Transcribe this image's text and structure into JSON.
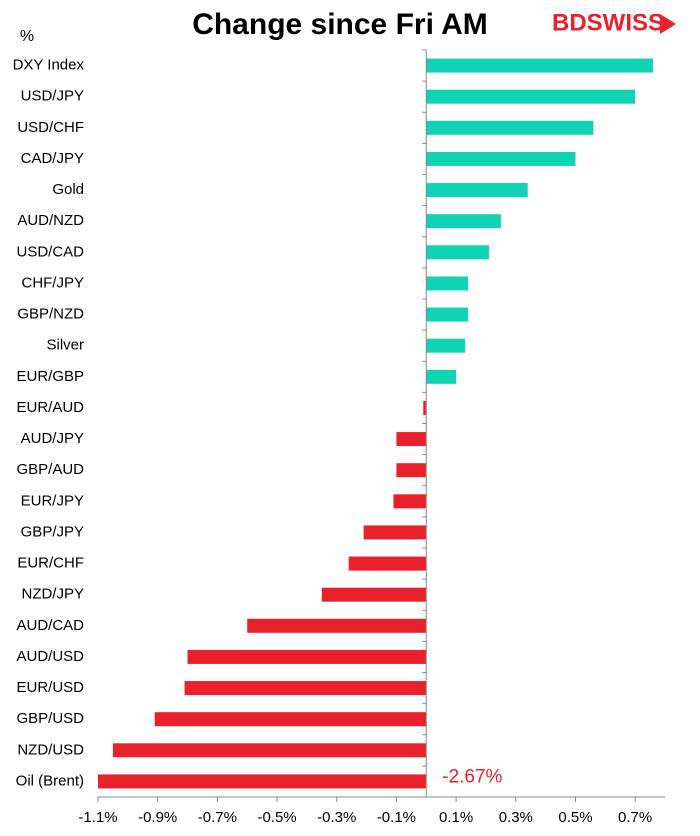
{
  "chart_data": {
    "type": "hbar",
    "title": "Change since Fri AM",
    "unit_label": "%",
    "logo": "BDSWISS",
    "categories": [
      "DXY Index",
      "USD/JPY",
      "USD/CHF",
      "CAD/JPY",
      "Gold",
      "AUD/NZD",
      "USD/CAD",
      "CHF/JPY",
      "GBP/NZD",
      "Silver",
      "EUR/GBP",
      "EUR/AUD",
      "AUD/JPY",
      "GBP/AUD",
      "EUR/JPY",
      "GBP/JPY",
      "EUR/CHF",
      "NZD/JPY",
      "AUD/CAD",
      "AUD/USD",
      "EUR/USD",
      "GBP/USD",
      "NZD/USD",
      "Oil (Brent)"
    ],
    "values": [
      0.76,
      0.7,
      0.56,
      0.5,
      0.34,
      0.25,
      0.21,
      0.14,
      0.14,
      0.13,
      0.1,
      -0.01,
      -0.1,
      -0.1,
      -0.11,
      -0.21,
      -0.26,
      -0.35,
      -0.6,
      -0.8,
      -0.81,
      -0.91,
      -1.05,
      -2.67
    ],
    "value_labels": [
      null,
      null,
      null,
      null,
      null,
      null,
      null,
      null,
      null,
      null,
      null,
      null,
      null,
      null,
      null,
      null,
      null,
      null,
      null,
      null,
      null,
      null,
      null,
      "-2.67%"
    ],
    "positive_color": "#0fd4b4",
    "negative_color": "#e8212b",
    "xlim": [
      -1.1,
      0.8
    ],
    "xticks": [
      {
        "value": -1.1,
        "label": "-1.1%"
      },
      {
        "value": -0.9,
        "label": "-0.9%"
      },
      {
        "value": -0.7,
        "label": "-0.7%"
      },
      {
        "value": -0.5,
        "label": "-0.5%"
      },
      {
        "value": -0.3,
        "label": "-0.3%"
      },
      {
        "value": -0.1,
        "label": "-0.1%"
      },
      {
        "value": 0.1,
        "label": "0.1%"
      },
      {
        "value": 0.3,
        "label": "0.3%"
      },
      {
        "value": 0.5,
        "label": "0.5%"
      },
      {
        "value": 0.7,
        "label": "0.7%"
      }
    ]
  }
}
